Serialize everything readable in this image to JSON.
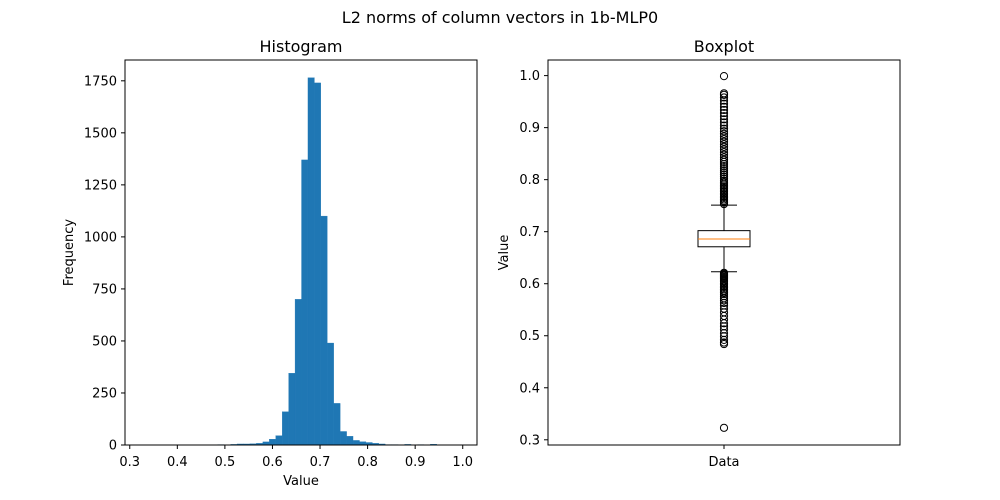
{
  "figure": {
    "suptitle": "L2 norms of column vectors in 1b-MLP0"
  },
  "chart_data": [
    {
      "type": "bar",
      "subtype": "histogram",
      "title": "Histogram",
      "xlabel": "Value",
      "ylabel": "Frequency",
      "xlim": [
        0.29,
        1.03
      ],
      "ylim": [
        0,
        1850
      ],
      "xticks": [
        0.3,
        0.4,
        0.5,
        0.6,
        0.7,
        0.8,
        0.9,
        1.0
      ],
      "xtick_labels": [
        "0.3",
        "0.4",
        "0.5",
        "0.6",
        "0.7",
        "0.8",
        "0.9",
        "1.0"
      ],
      "yticks": [
        0,
        250,
        500,
        750,
        1000,
        1250,
        1500,
        1750
      ],
      "ytick_labels": [
        "0",
        "250",
        "500",
        "750",
        "1000",
        "1250",
        "1500",
        "1750"
      ],
      "bar_color": "#1f77b4",
      "bin_edges": [
        0.3225,
        0.336,
        0.3495,
        0.3631,
        0.3766,
        0.3902,
        0.4037,
        0.4173,
        0.4308,
        0.4444,
        0.4579,
        0.4715,
        0.485,
        0.4985,
        0.5121,
        0.5256,
        0.5392,
        0.5527,
        0.5663,
        0.5798,
        0.5934,
        0.6069,
        0.6205,
        0.634,
        0.6475,
        0.6611,
        0.6746,
        0.6882,
        0.7017,
        0.7153,
        0.7288,
        0.7424,
        0.7559,
        0.7694,
        0.783,
        0.7965,
        0.8101,
        0.8236,
        0.8372,
        0.8507,
        0.8643,
        0.8778,
        0.8914,
        0.9049,
        0.9184,
        0.932,
        0.9455,
        0.9591,
        0.9726,
        0.9862,
        0.9997
      ],
      "counts": [
        1,
        0,
        0,
        0,
        0,
        0,
        0,
        0,
        0,
        0,
        0,
        0,
        2,
        0,
        3,
        5,
        5,
        6,
        8,
        15,
        28,
        45,
        160,
        345,
        700,
        1370,
        1765,
        1740,
        1100,
        490,
        200,
        65,
        42,
        22,
        16,
        12,
        8,
        5,
        2,
        2,
        0,
        3,
        0,
        2,
        1,
        4,
        1,
        1,
        0,
        1
      ]
    },
    {
      "type": "boxplot",
      "title": "Boxplot",
      "xlabel": "",
      "ylabel": "Value",
      "category": "Data",
      "ylim": [
        0.29,
        1.03
      ],
      "yticks": [
        0.3,
        0.4,
        0.5,
        0.6,
        0.7,
        0.8,
        0.9,
        1.0
      ],
      "ytick_labels": [
        "0.3",
        "0.4",
        "0.5",
        "0.6",
        "0.7",
        "0.8",
        "0.9",
        "1.0"
      ],
      "whisker_low": 0.623,
      "q1": 0.671,
      "median": 0.686,
      "q3": 0.702,
      "whisker_high": 0.751,
      "median_color": "#ff7f0e",
      "outliers": [
        0.323,
        0.484,
        0.487,
        0.492,
        0.499,
        0.505,
        0.512,
        0.518,
        0.524,
        0.531,
        0.538,
        0.545,
        0.552,
        0.558,
        0.563,
        0.568,
        0.572,
        0.576,
        0.58,
        0.583,
        0.586,
        0.589,
        0.592,
        0.595,
        0.598,
        0.601,
        0.604,
        0.606,
        0.609,
        0.611,
        0.613,
        0.615,
        0.617,
        0.619,
        0.621,
        0.753,
        0.756,
        0.759,
        0.762,
        0.765,
        0.768,
        0.771,
        0.774,
        0.777,
        0.78,
        0.783,
        0.786,
        0.789,
        0.792,
        0.795,
        0.798,
        0.802,
        0.806,
        0.81,
        0.814,
        0.818,
        0.822,
        0.826,
        0.83,
        0.834,
        0.838,
        0.843,
        0.848,
        0.853,
        0.858,
        0.863,
        0.868,
        0.873,
        0.878,
        0.883,
        0.888,
        0.893,
        0.898,
        0.904,
        0.91,
        0.916,
        0.922,
        0.928,
        0.934,
        0.94,
        0.946,
        0.952,
        0.958,
        0.963,
        0.966,
        0.999
      ]
    }
  ]
}
